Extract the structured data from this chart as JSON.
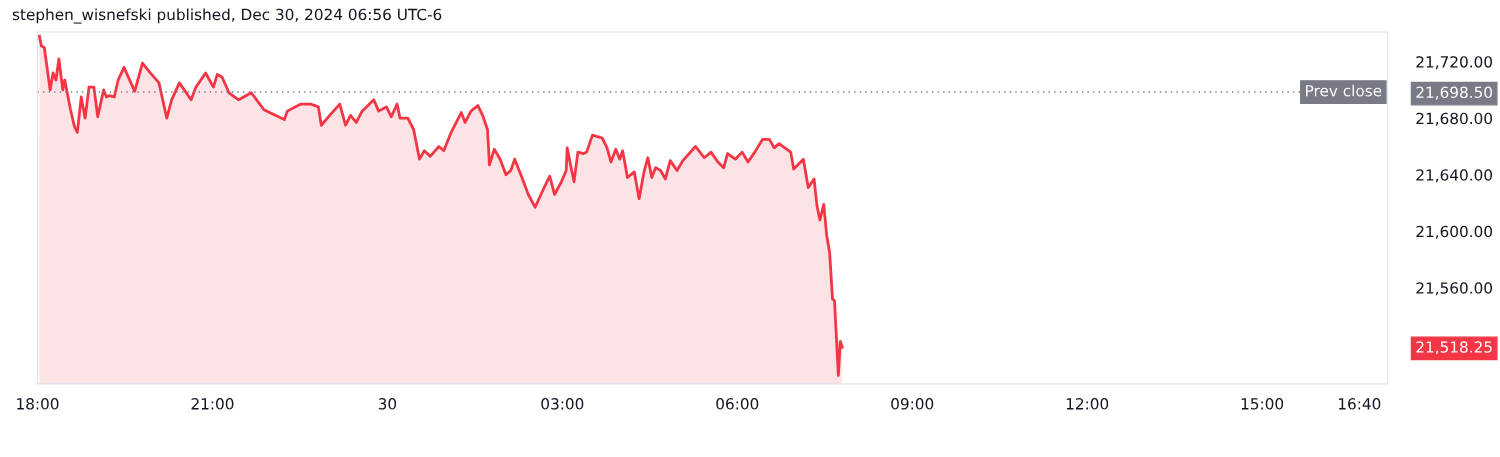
{
  "chart_data": {
    "type": "area",
    "annotations": [
      "stephen_wisnefski published, Dec 30, 2024 06:56 UTC-6"
    ],
    "series": [
      {
        "color": "#f23645",
        "x": [
          "2024-12-29T18:02",
          "2024-12-29T18:04",
          "2024-12-29T18:07",
          "2024-12-29T18:13",
          "2024-12-29T18:16",
          "2024-12-29T18:19",
          "2024-12-29T18:22",
          "2024-12-29T18:26",
          "2024-12-29T18:28",
          "2024-12-29T18:34",
          "2024-12-29T18:38",
          "2024-12-29T18:41",
          "2024-12-29T18:45",
          "2024-12-29T18:49",
          "2024-12-29T18:53",
          "2024-12-29T18:58",
          "2024-12-29T19:02",
          "2024-12-29T19:08",
          "2024-12-29T19:11",
          "2024-12-29T19:14",
          "2024-12-29T19:19",
          "2024-12-29T19:23",
          "2024-12-29T19:29",
          "2024-12-29T19:40",
          "2024-12-29T19:48",
          "2024-12-29T19:55",
          "2024-12-29T20:05",
          "2024-12-29T20:13",
          "2024-12-29T20:18",
          "2024-12-29T20:26",
          "2024-12-29T20:38",
          "2024-12-29T20:43",
          "2024-12-29T20:53",
          "2024-12-29T21:01",
          "2024-12-29T21:05",
          "2024-12-29T21:10",
          "2024-12-29T21:17",
          "2024-12-29T21:27",
          "2024-12-29T21:40",
          "2024-12-29T21:53",
          "2024-12-29T22:02",
          "2024-12-29T22:14",
          "2024-12-29T22:17",
          "2024-12-29T22:31",
          "2024-12-29T22:41",
          "2024-12-29T22:49",
          "2024-12-29T22:52",
          "2024-12-29T23:02",
          "2024-12-29T23:11",
          "2024-12-29T23:17",
          "2024-12-29T23:22",
          "2024-12-29T23:28",
          "2024-12-29T23:34",
          "2024-12-29T23:46",
          "2024-12-29T23:51",
          "2024-12-29T23:59",
          "2024-12-30T00:04",
          "2024-12-30T00:10",
          "2024-12-30T00:13",
          "2024-12-30T00:21",
          "2024-12-30T00:27",
          "2024-12-30T00:33",
          "2024-12-30T00:38",
          "2024-12-30T00:44",
          "2024-12-30T00:53",
          "2024-12-30T00:58",
          "2024-12-30T01:05",
          "2024-12-30T01:16",
          "2024-12-30T01:20",
          "2024-12-30T01:26",
          "2024-12-30T01:33",
          "2024-12-30T01:38",
          "2024-12-30T01:43",
          "2024-12-30T01:45",
          "2024-12-30T01:50",
          "2024-12-30T01:56",
          "2024-12-30T02:02",
          "2024-12-30T02:07",
          "2024-12-30T02:11",
          "2024-12-30T02:19",
          "2024-12-30T02:25",
          "2024-12-30T02:32",
          "2024-12-30T02:40",
          "2024-12-30T02:47",
          "2024-12-30T02:52",
          "2024-12-30T02:59",
          "2024-12-30T03:04",
          "2024-12-30T03:05",
          "2024-12-30T03:09",
          "2024-12-30T03:12",
          "2024-12-30T03:16",
          "2024-12-30T03:22",
          "2024-12-30T03:25",
          "2024-12-30T03:31",
          "2024-12-30T03:41",
          "2024-12-30T03:46",
          "2024-12-30T03:50",
          "2024-12-30T03:55",
          "2024-12-30T03:59",
          "2024-12-30T04:02",
          "2024-12-30T04:07",
          "2024-12-30T04:14",
          "2024-12-30T04:19",
          "2024-12-30T04:24",
          "2024-12-30T04:28",
          "2024-12-30T04:32",
          "2024-12-30T04:36",
          "2024-12-30T04:41",
          "2024-12-30T04:46",
          "2024-12-30T04:51",
          "2024-12-30T04:58",
          "2024-12-30T05:04",
          "2024-12-30T05:17",
          "2024-12-30T05:26",
          "2024-12-30T05:33",
          "2024-12-30T05:40",
          "2024-12-30T05:46",
          "2024-12-30T05:50",
          "2024-12-30T05:58",
          "2024-12-30T06:05",
          "2024-12-30T06:11",
          "2024-12-30T06:18",
          "2024-12-30T06:26",
          "2024-12-30T06:33",
          "2024-12-30T06:38",
          "2024-12-30T06:43",
          "2024-12-30T06:55",
          "2024-12-30T06:58",
          "2024-12-30T07:08",
          "2024-12-30T07:13",
          "2024-12-30T07:19",
          "2024-12-30T07:22",
          "2024-12-30T07:25",
          "2024-12-30T07:29",
          "2024-12-30T07:32",
          "2024-12-30T07:35",
          "2024-12-30T07:38",
          "2024-12-30T07:40",
          "2024-12-30T07:44",
          "2024-12-30T07:46",
          "2024-12-30T07:48"
        ],
        "values": [
          21738,
          21731,
          21730,
          21700,
          21712,
          21707,
          21722,
          21700,
          21707,
          21686,
          21674,
          21670,
          21695,
          21680,
          21702,
          21702,
          21681,
          21700,
          21695,
          21696,
          21695,
          21707,
          21716,
          21699,
          21719,
          21713,
          21705,
          21680,
          21693,
          21705,
          21693,
          21702,
          21712,
          21702,
          21711,
          21709,
          21698,
          21693,
          21698,
          21686,
          21683,
          21679,
          21685,
          21690,
          21690,
          21688,
          21675,
          21683,
          21690,
          21675,
          21682,
          21677,
          21685,
          21693,
          21685,
          21688,
          21681,
          21690,
          21680,
          21680,
          21672,
          21651,
          21657,
          21653,
          21660,
          21657,
          21669,
          21684,
          21677,
          21685,
          21689,
          21682,
          21672,
          21647,
          21658,
          21651,
          21640,
          21643,
          21651,
          21637,
          21626,
          21617,
          21629,
          21639,
          21626,
          21635,
          21643,
          21659,
          21645,
          21635,
          21656,
          21655,
          21656,
          21668,
          21666,
          21659,
          21649,
          21658,
          21651,
          21657,
          21638,
          21642,
          21623,
          21642,
          21652,
          21638,
          21645,
          21643,
          21637,
          21650,
          21643,
          21650,
          21660,
          21652,
          21656,
          21649,
          21645,
          21655,
          21651,
          21656,
          21649,
          21656,
          21665,
          21665,
          21659,
          21662,
          21656,
          21644,
          21651,
          21631,
          21637,
          21618,
          21608,
          21619,
          21597,
          21585,
          21552,
          21551,
          21498,
          21522,
          21518
        ]
      }
    ],
    "xlim": [
      "2024-12-29T18:00",
      "2024-12-30T17:09"
    ],
    "xticks": [
      {
        "value": "2024-12-29T18:00",
        "label": "18:00"
      },
      {
        "value": "2024-12-29T21:00",
        "label": "21:00"
      },
      {
        "value": "2024-12-30",
        "label": "30"
      },
      {
        "value": "2024-12-30T03:00",
        "label": "03:00"
      },
      {
        "value": "2024-12-30T06:00",
        "label": "06:00"
      },
      {
        "value": "2024-12-30T09:00",
        "label": "09:00"
      },
      {
        "value": "2024-12-30T12:00",
        "label": "12:00"
      },
      {
        "value": "2024-12-30T15:00",
        "label": "15:00"
      },
      {
        "value": "2024-12-30T16:40",
        "label": "16:40"
      }
    ],
    "ylim": [
      21492,
      21741
    ],
    "yticks": [
      {
        "value": 21518.25,
        "label": "21,518.25"
      },
      {
        "value": 21560,
        "label": "21,560.00"
      },
      {
        "value": 21600,
        "label": "21,600.00"
      },
      {
        "value": 21640,
        "label": "21,640.00"
      },
      {
        "value": 21680,
        "label": "21,680.00"
      },
      {
        "value": 21698.5,
        "label": "21,698.50"
      },
      {
        "value": 21720,
        "label": "21,720.00"
      }
    ],
    "ref_lines": [
      {
        "axis": "y",
        "value": 21698.5,
        "label": "Prev close",
        "color": "#787b86",
        "line_style": "dotted"
      }
    ],
    "grid": false,
    "legend": false
  }
}
